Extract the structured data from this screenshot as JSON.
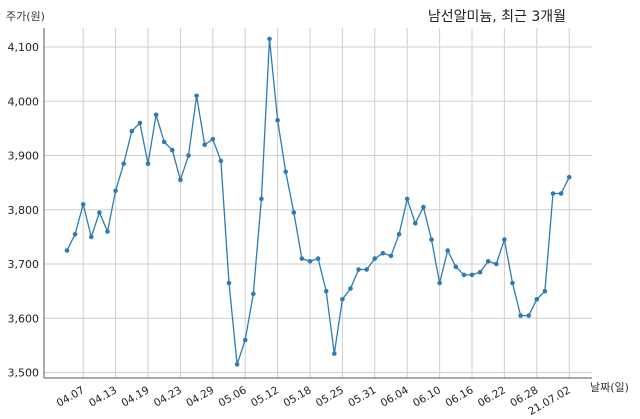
{
  "chart_data": {
    "type": "line",
    "title": "남선알미늄, 최근 3개월",
    "ylabel": "주가(원)",
    "xlabel": "날짜(일)",
    "ylim": [
      3490,
      4135
    ],
    "yticks": [
      3500,
      3600,
      3700,
      3800,
      3900,
      4000,
      4100
    ],
    "ytick_labels": [
      "3,500",
      "3,600",
      "3,700",
      "3,800",
      "3,900",
      "4,000",
      "4,100"
    ],
    "xtick_labels": [
      "04.07",
      "04.13",
      "04.19",
      "04.23",
      "04.29",
      "05.06",
      "05.12",
      "05.18",
      "05.25",
      "05.31",
      "06.04",
      "06.10",
      "06.16",
      "06.22",
      "06.28",
      "21.07.02"
    ],
    "xtick_indices": [
      2,
      6,
      10,
      14,
      18,
      22,
      26,
      30,
      34,
      38,
      42,
      46,
      50,
      54,
      58,
      62
    ],
    "grid": true,
    "color": "#2e7bb4",
    "series": [
      {
        "values": [
          3725,
          3755,
          3810,
          3750,
          3795,
          3760,
          3835,
          3885,
          3945,
          3960,
          3885,
          3975,
          3925,
          3910,
          3855,
          3900,
          4010,
          3920,
          3930,
          3890,
          3665,
          3515,
          3560,
          3645,
          3820,
          4115,
          3965,
          3870,
          3795,
          3710,
          3705,
          3710,
          3650,
          3535,
          3635,
          3655,
          3690,
          3690,
          3710,
          3720,
          3715,
          3755,
          3820,
          3775,
          3805,
          3745,
          3665,
          3725,
          3695,
          3680,
          3680,
          3685,
          3705,
          3700,
          3745,
          3665,
          3605,
          3605,
          3635,
          3650,
          3830,
          3830,
          3860
        ]
      }
    ]
  }
}
